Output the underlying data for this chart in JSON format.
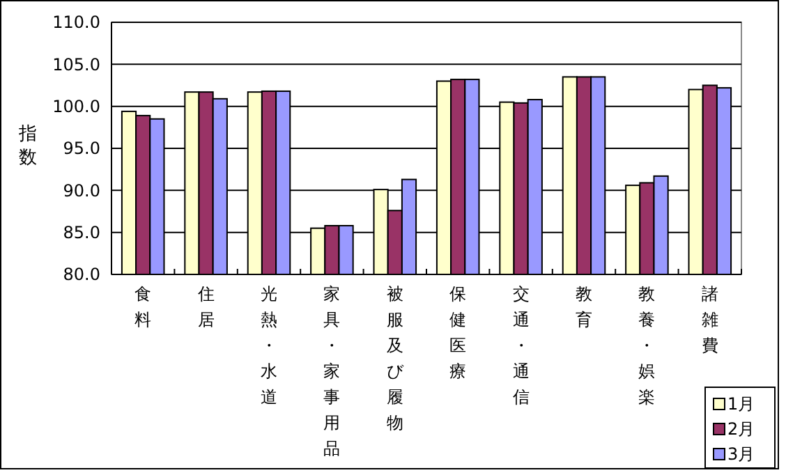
{
  "chart_data": {
    "type": "bar",
    "ylabel": "指数",
    "categories": [
      "食料",
      "住居",
      "光熱・水道",
      "家具・家事用品",
      "被服及び履物",
      "保健医療",
      "交通・通信",
      "教育",
      "教養・娯楽",
      "諸雑費"
    ],
    "series": [
      {
        "name": "1月",
        "color": "#ffffcc",
        "values": [
          99.4,
          101.7,
          101.7,
          85.5,
          90.1,
          103.0,
          100.5,
          103.5,
          90.6,
          102.0
        ]
      },
      {
        "name": "2月",
        "color": "#993366",
        "values": [
          98.9,
          101.7,
          101.8,
          85.8,
          87.6,
          103.2,
          100.4,
          103.5,
          90.9,
          102.5
        ]
      },
      {
        "name": "3月",
        "color": "#9999ff",
        "values": [
          98.5,
          100.9,
          101.8,
          85.8,
          91.3,
          103.2,
          100.8,
          103.5,
          91.7,
          102.2
        ]
      }
    ],
    "ylim": [
      80,
      110
    ],
    "yticks": [
      {
        "value": 80,
        "label": "80.0"
      },
      {
        "value": 85,
        "label": "85.0"
      },
      {
        "value": 90,
        "label": "90.0"
      },
      {
        "value": 95,
        "label": "95.0"
      },
      {
        "value": 100,
        "label": "100.0"
      },
      {
        "value": 105,
        "label": "105.0"
      },
      {
        "value": 110,
        "label": "110.0"
      }
    ],
    "grid": "y",
    "legend": "bottom right"
  }
}
